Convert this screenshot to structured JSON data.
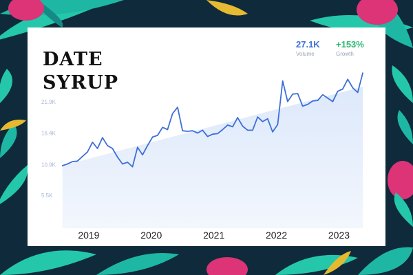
{
  "header": {
    "title_line1": "DATE",
    "title_line2": "SYRUP"
  },
  "stats": {
    "volume": {
      "value": "27.1K",
      "label": "Volume",
      "color": "#3d6fd8"
    },
    "growth": {
      "value": "+153%",
      "label": "Growth",
      "color": "#2eb872"
    }
  },
  "background": {
    "base_color": "#0e2a3b",
    "leaf_colors": [
      "#1fbfa9",
      "#26d0b0",
      "#f2c230",
      "#e8357a",
      "#178f8a"
    ]
  },
  "chart_data": {
    "type": "line",
    "x_tick_labels": [
      "2019",
      "2020",
      "2021",
      "2022",
      "2023"
    ],
    "y_tick_labels": [
      "5.5K",
      "10.9K",
      "16.4K",
      "21.9K"
    ],
    "y_ticks": [
      5500,
      10900,
      16400,
      21900
    ],
    "ylim": [
      0,
      27400
    ],
    "xlim": [
      2018.55,
      2023.6
    ],
    "series": [
      {
        "color": "#3d6fd8",
        "points": [
          [
            2018.58,
            10.7
          ],
          [
            2018.66,
            11.0
          ],
          [
            2018.74,
            11.4
          ],
          [
            2018.82,
            11.5
          ],
          [
            2018.9,
            12.3
          ],
          [
            2018.98,
            13.1
          ],
          [
            2019.06,
            14.8
          ],
          [
            2019.14,
            13.7
          ],
          [
            2019.22,
            15.6
          ],
          [
            2019.3,
            14.2
          ],
          [
            2019.38,
            13.7
          ],
          [
            2019.46,
            12.2
          ],
          [
            2019.54,
            11.0
          ],
          [
            2019.62,
            11.3
          ],
          [
            2019.7,
            10.5
          ],
          [
            2019.78,
            13.9
          ],
          [
            2019.86,
            12.6
          ],
          [
            2019.94,
            14.2
          ],
          [
            2020.02,
            15.7
          ],
          [
            2020.1,
            16.0
          ],
          [
            2020.18,
            17.4
          ],
          [
            2020.26,
            17.0
          ],
          [
            2020.34,
            19.8
          ],
          [
            2020.42,
            20.9
          ],
          [
            2020.5,
            16.8
          ],
          [
            2020.58,
            16.7
          ],
          [
            2020.66,
            16.8
          ],
          [
            2020.74,
            16.4
          ],
          [
            2020.82,
            16.9
          ],
          [
            2020.9,
            15.8
          ],
          [
            2020.98,
            16.2
          ],
          [
            2021.06,
            16.3
          ],
          [
            2021.14,
            17.0
          ],
          [
            2021.22,
            17.8
          ],
          [
            2021.3,
            17.5
          ],
          [
            2021.38,
            19.1
          ],
          [
            2021.46,
            17.6
          ],
          [
            2021.54,
            16.9
          ],
          [
            2021.62,
            16.9
          ],
          [
            2021.7,
            19.2
          ],
          [
            2021.78,
            18.4
          ],
          [
            2021.86,
            18.9
          ],
          [
            2021.94,
            16.6
          ],
          [
            2022.02,
            17.9
          ],
          [
            2022.1,
            25.5
          ],
          [
            2022.18,
            21.9
          ],
          [
            2022.26,
            23.2
          ],
          [
            2022.34,
            23.3
          ],
          [
            2022.42,
            21.1
          ],
          [
            2022.5,
            21.4
          ],
          [
            2022.58,
            22.0
          ],
          [
            2022.66,
            22.1
          ],
          [
            2022.74,
            23.1
          ],
          [
            2022.82,
            22.5
          ],
          [
            2022.9,
            21.9
          ],
          [
            2022.98,
            23.7
          ],
          [
            2023.06,
            24.1
          ],
          [
            2023.14,
            25.8
          ],
          [
            2023.22,
            24.3
          ],
          [
            2023.3,
            23.5
          ],
          [
            2023.38,
            26.9
          ]
        ]
      }
    ],
    "area_fill": "#dbe7fa",
    "grid": false
  }
}
